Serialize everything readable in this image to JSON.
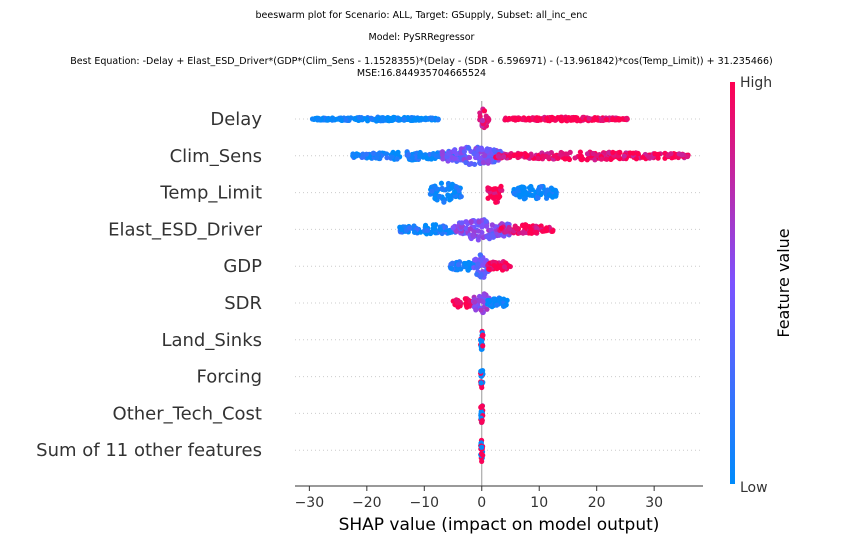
{
  "titles": {
    "line1": "beeswarm plot for Scenario: ALL, Target: GSupply, Subset: all_inc_enc",
    "line2": "Model: PySRRegressor",
    "line3": "Best Equation: -Delay + Elast_ESD_Driver*(GDP*(Clim_Sens - 1.1528355)*(Delay - (SDR - 6.596971) - (-13.961842)*cos(Temp_Limit)) + 31.235466)",
    "line4": "MSE:16.844935704665524"
  },
  "chart_data": {
    "type": "scatter",
    "subtype": "shap-beeswarm",
    "xlabel": "SHAP value (impact on model output)",
    "xlim": [
      -32.5,
      38.5
    ],
    "xticks": [
      -30,
      -20,
      -10,
      0,
      10,
      20,
      30
    ],
    "grid": false,
    "colorbar": {
      "label": "Feature value",
      "high_label": "High",
      "low_label": "Low",
      "low_color": "#008bfb",
      "mid_color": "#7c52ff",
      "high_color": "#ff0051"
    },
    "features": [
      {
        "name": "Delay",
        "min": -29.5,
        "max": 25.5,
        "segments": [
          {
            "from": -29.5,
            "to": -7.5,
            "value": 0.0,
            "density": 0.8,
            "spread": 0.12
          },
          {
            "from": -0.5,
            "to": 1.2,
            "value": 0.85,
            "density": 1.0,
            "spread": 0.65
          },
          {
            "from": 4.0,
            "to": 25.5,
            "value": 1.0,
            "density": 0.85,
            "spread": 0.12
          }
        ]
      },
      {
        "name": "Clim_Sens",
        "min": -22.5,
        "max": 36.0,
        "segments": [
          {
            "from": -22.5,
            "to": -3.0,
            "value": 0.05,
            "density": 0.6,
            "spread": 0.25
          },
          {
            "from": -7.0,
            "to": 4.0,
            "value": 0.45,
            "density": 1.0,
            "spread": 0.6
          },
          {
            "from": 2.0,
            "to": 36.0,
            "value": 0.95,
            "density": 0.6,
            "spread": 0.25
          }
        ]
      },
      {
        "name": "Temp_Limit",
        "min": -9.0,
        "max": 13.0,
        "segments": [
          {
            "from": -9.0,
            "to": -3.5,
            "value": 0.0,
            "density": 1.0,
            "spread": 0.65
          },
          {
            "from": 1.0,
            "to": 3.5,
            "value": 1.0,
            "density": 1.0,
            "spread": 0.75
          },
          {
            "from": 5.5,
            "to": 13.0,
            "value": 0.0,
            "density": 0.8,
            "spread": 0.5
          }
        ]
      },
      {
        "name": "Elast_ESD_Driver",
        "min": -14.5,
        "max": 12.5,
        "segments": [
          {
            "from": -14.5,
            "to": -3.0,
            "value": 0.1,
            "density": 0.6,
            "spread": 0.3
          },
          {
            "from": -5.0,
            "to": 5.0,
            "value": 0.5,
            "density": 1.0,
            "spread": 0.7
          },
          {
            "from": 3.0,
            "to": 12.5,
            "value": 0.95,
            "density": 0.6,
            "spread": 0.3
          }
        ]
      },
      {
        "name": "GDP",
        "min": -5.5,
        "max": 5.0,
        "segments": [
          {
            "from": -5.5,
            "to": -1.0,
            "value": 0.1,
            "density": 0.8,
            "spread": 0.35
          },
          {
            "from": -1.5,
            "to": 1.5,
            "value": 0.4,
            "density": 1.0,
            "spread": 0.75
          },
          {
            "from": 1.0,
            "to": 5.0,
            "value": 0.95,
            "density": 0.8,
            "spread": 0.35
          }
        ]
      },
      {
        "name": "SDR",
        "min": -5.0,
        "max": 4.5,
        "segments": [
          {
            "from": -5.0,
            "to": -1.5,
            "value": 1.0,
            "density": 0.8,
            "spread": 0.35
          },
          {
            "from": -1.5,
            "to": 1.5,
            "value": 0.55,
            "density": 1.0,
            "spread": 0.7
          },
          {
            "from": 1.0,
            "to": 4.5,
            "value": 0.0,
            "density": 0.8,
            "spread": 0.35
          }
        ]
      },
      {
        "name": "Land_Sinks",
        "min": -0.2,
        "max": 0.2,
        "segments": [
          {
            "from": -0.2,
            "to": 0.2,
            "value": -1,
            "density": 1.0,
            "spread": 0.7
          }
        ]
      },
      {
        "name": "Forcing",
        "min": -0.2,
        "max": 0.2,
        "segments": [
          {
            "from": -0.2,
            "to": 0.2,
            "value": -1,
            "density": 1.0,
            "spread": 0.7
          }
        ]
      },
      {
        "name": "Other_Tech_Cost",
        "min": -0.2,
        "max": 0.2,
        "segments": [
          {
            "from": -0.2,
            "to": 0.2,
            "value": -1,
            "density": 1.0,
            "spread": 0.7
          }
        ]
      },
      {
        "name": "Sum of 11 other features",
        "min": -0.2,
        "max": 0.2,
        "segments": [
          {
            "from": -0.2,
            "to": 0.2,
            "value": -1,
            "density": 1.0,
            "spread": 0.7
          }
        ]
      }
    ]
  }
}
